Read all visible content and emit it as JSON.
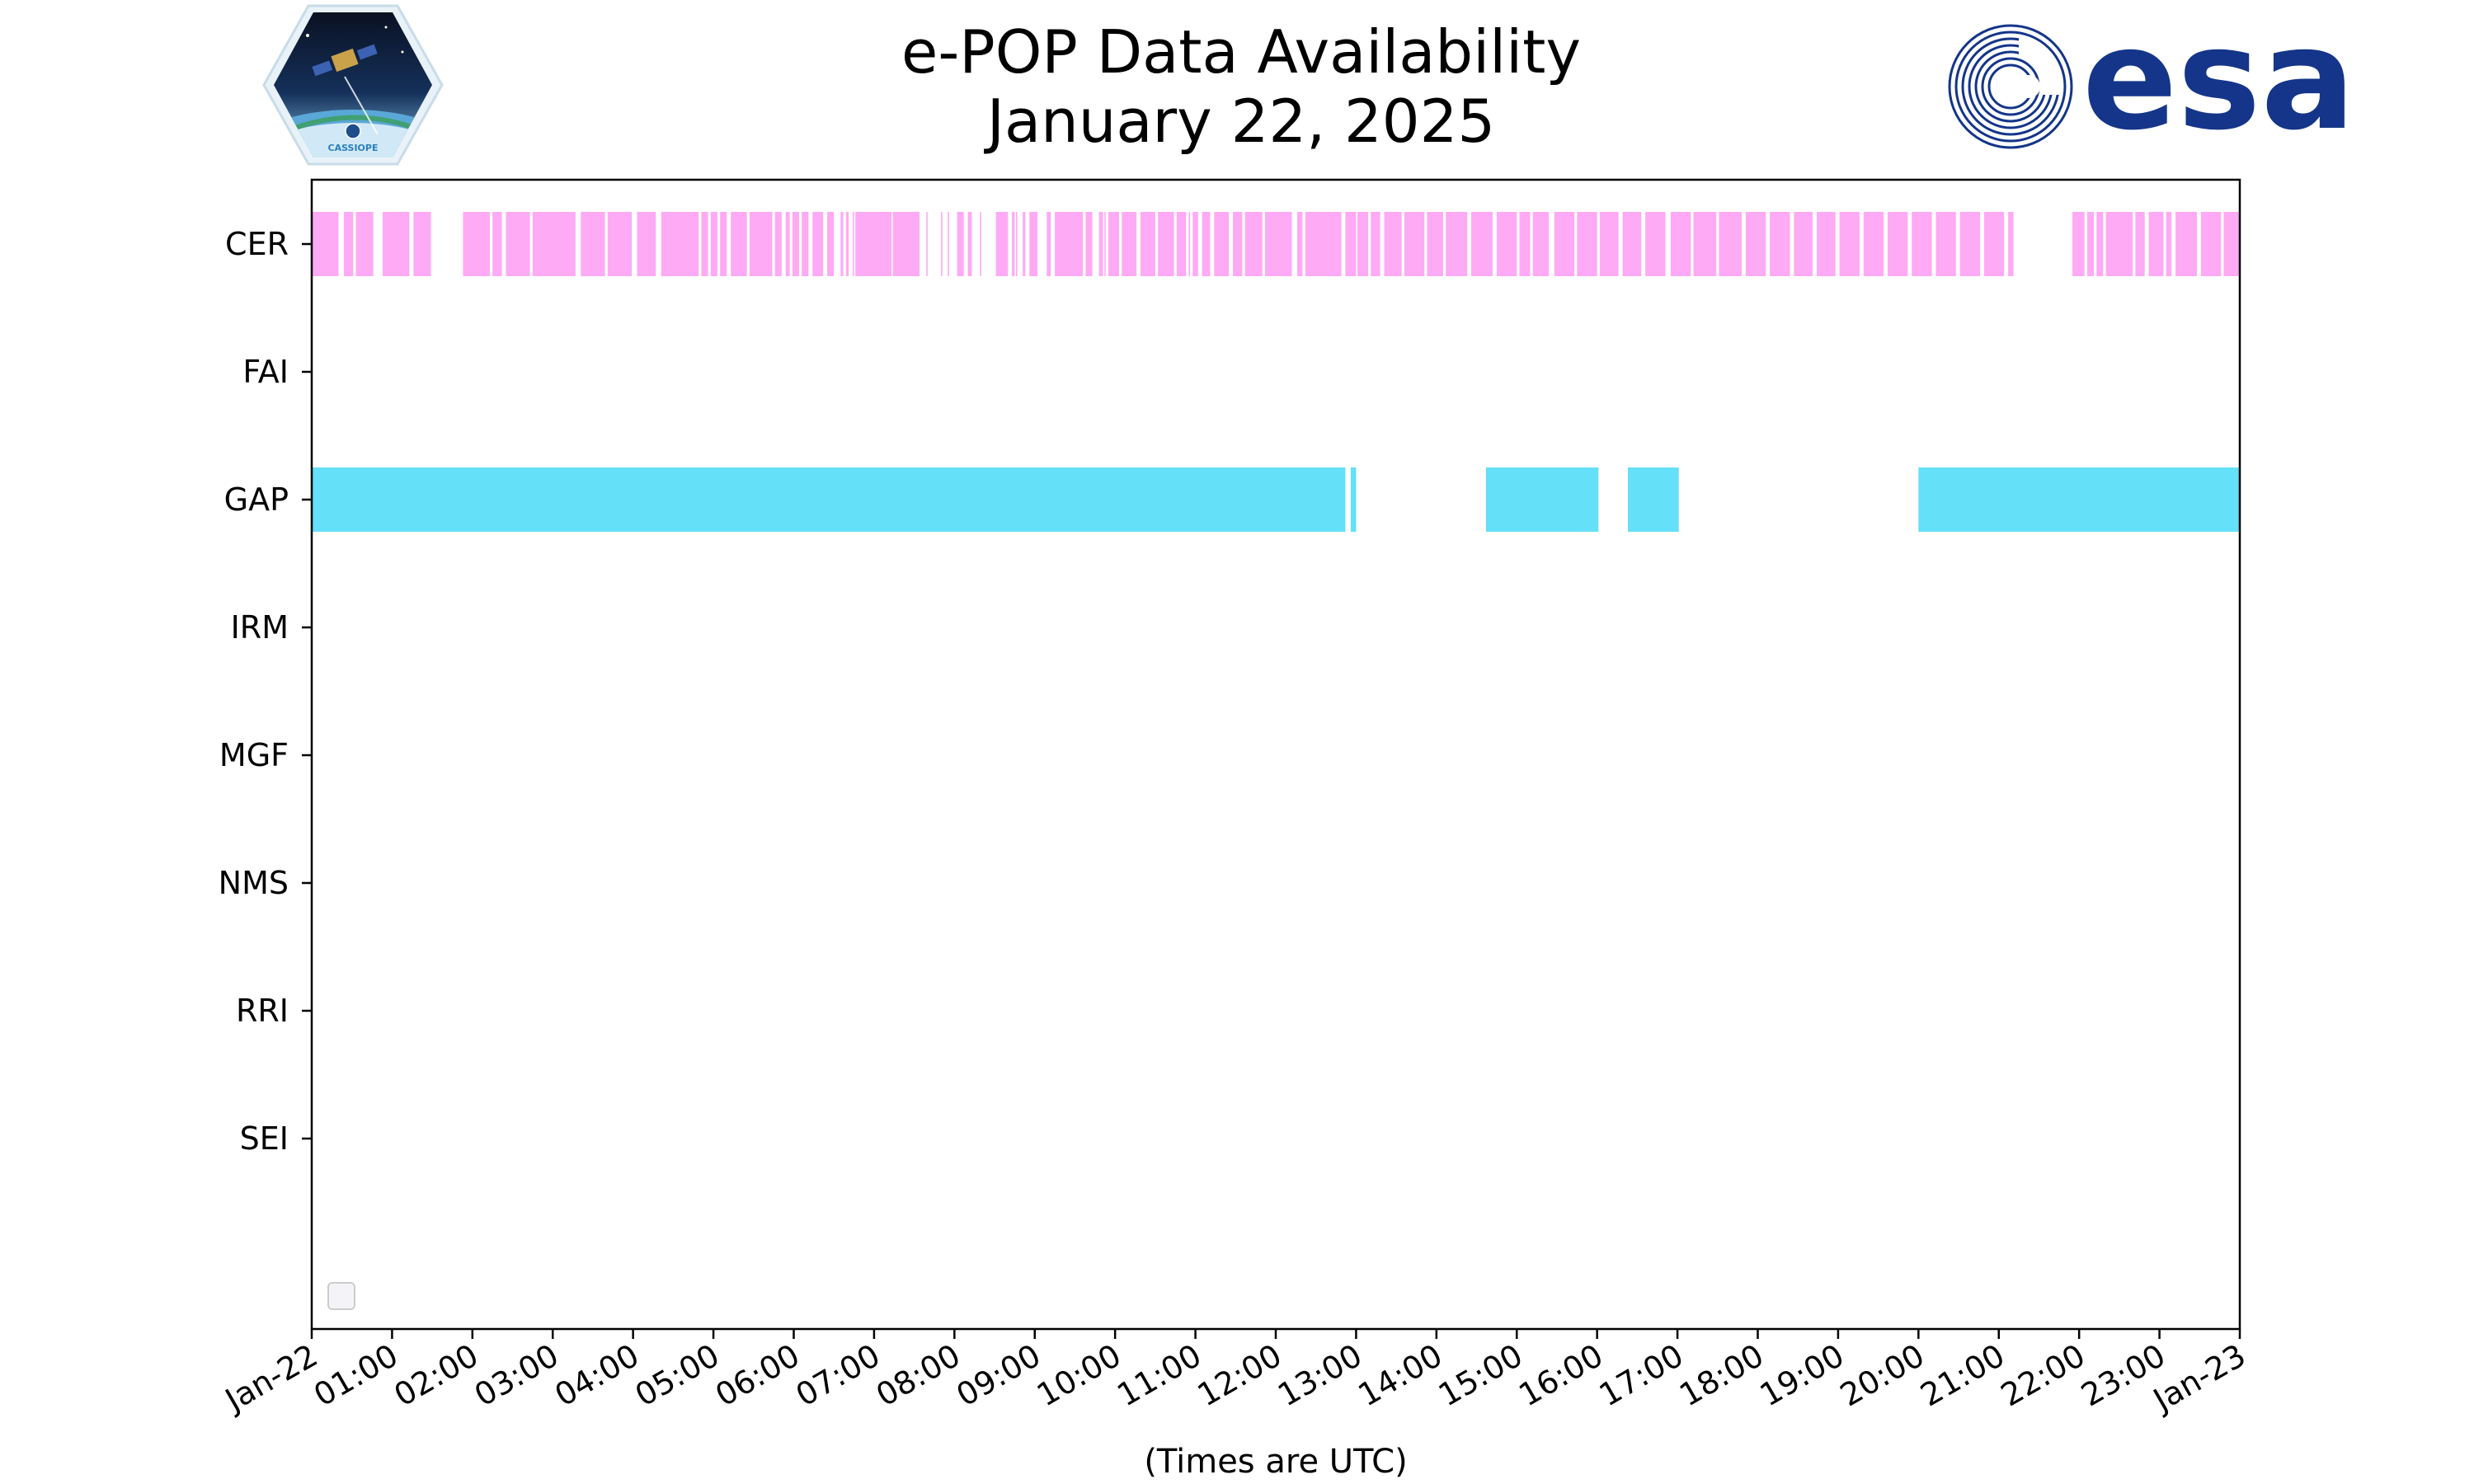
{
  "chart_data": {
    "type": "timeline",
    "title": "e-POP Data Availability",
    "subtitle": "January 22, 2025",
    "xlabel": "(Times are UTC)",
    "xlim": [
      "2025-01-22 00:00",
      "2025-01-23 00:00"
    ],
    "x_tick_labels": [
      "Jan-22",
      "01:00",
      "02:00",
      "03:00",
      "04:00",
      "05:00",
      "06:00",
      "07:00",
      "08:00",
      "09:00",
      "10:00",
      "11:00",
      "12:00",
      "13:00",
      "14:00",
      "15:00",
      "16:00",
      "17:00",
      "18:00",
      "19:00",
      "20:00",
      "21:00",
      "22:00",
      "23:00",
      "Jan-23"
    ],
    "categories": [
      "CER",
      "FAI",
      "GAP",
      "IRM",
      "MGF",
      "NMS",
      "RRI",
      "SEI"
    ],
    "series": [
      {
        "category": "CER",
        "color": "#ffaaf5",
        "intervals": [
          [
            "00:00",
            "00:20"
          ],
          [
            "00:24",
            "00:31"
          ],
          [
            "00:33",
            "00:46"
          ],
          [
            "00:53",
            "01:13"
          ],
          [
            "01:16",
            "01:29"
          ],
          [
            "01:53",
            "02:13"
          ],
          [
            "02:15",
            "02:22"
          ],
          [
            "02:25",
            "02:43"
          ],
          [
            "02:45",
            "03:17"
          ],
          [
            "03:21",
            "03:39"
          ],
          [
            "03:41",
            "03:59"
          ],
          [
            "04:03",
            "04:17"
          ],
          [
            "04:21",
            "04:49"
          ],
          [
            "04:51",
            "04:56"
          ],
          [
            "04:58",
            "05:03"
          ],
          [
            "05:05",
            "05:10"
          ],
          [
            "05:13",
            "05:25"
          ],
          [
            "05:27",
            "05:44"
          ],
          [
            "05:46",
            "05:51"
          ],
          [
            "05:54",
            "05:57"
          ],
          [
            "05:59",
            "06:04"
          ],
          [
            "06:06",
            "06:11"
          ],
          [
            "06:14",
            "06:22"
          ],
          [
            "06:25",
            "06:30"
          ],
          [
            "06:35",
            "06:37"
          ],
          [
            "06:39",
            "06:41"
          ],
          [
            "06:44",
            "06:45"
          ],
          [
            "06:46",
            "07:13"
          ],
          [
            "07:14",
            "07:34"
          ],
          [
            "07:39",
            "07:40"
          ],
          [
            "07:50",
            "07:51"
          ],
          [
            "07:55",
            "07:56"
          ],
          [
            "08:02",
            "08:07"
          ],
          [
            "08:10",
            "08:13"
          ],
          [
            "08:19",
            "08:20"
          ],
          [
            "08:31",
            "08:40"
          ],
          [
            "08:43",
            "08:45"
          ],
          [
            "08:46",
            "08:47"
          ],
          [
            "08:51",
            "08:53"
          ],
          [
            "08:56",
            "09:02"
          ],
          [
            "09:09",
            "09:12"
          ],
          [
            "09:15",
            "09:36"
          ],
          [
            "09:38",
            "09:43"
          ],
          [
            "09:48",
            "09:51"
          ],
          [
            "09:52",
            "09:53"
          ],
          [
            "09:55",
            "10:03"
          ],
          [
            "10:05",
            "10:16"
          ],
          [
            "10:19",
            "10:30"
          ],
          [
            "10:32",
            "10:44"
          ],
          [
            "10:46",
            "10:53"
          ],
          [
            "10:55",
            "10:56"
          ],
          [
            "10:58",
            "11:02"
          ],
          [
            "11:05",
            "11:11"
          ],
          [
            "11:14",
            "11:25"
          ],
          [
            "11:28",
            "11:35"
          ],
          [
            "11:37",
            "11:50"
          ],
          [
            "11:52",
            "12:12"
          ],
          [
            "12:16",
            "12:20"
          ],
          [
            "12:22",
            "12:49"
          ],
          [
            "12:52",
            "13:00"
          ],
          [
            "13:01",
            "13:09"
          ],
          [
            "13:11",
            "13:18"
          ],
          [
            "13:21",
            "13:34"
          ],
          [
            "13:36",
            "13:51"
          ],
          [
            "13:53",
            "14:05"
          ],
          [
            "14:07",
            "14:23"
          ],
          [
            "14:26",
            "14:42"
          ],
          [
            "14:45",
            "15:00"
          ],
          [
            "15:02",
            "15:10"
          ],
          [
            "15:12",
            "15:24"
          ],
          [
            "15:28",
            "15:43"
          ],
          [
            "15:45",
            "16:00"
          ],
          [
            "16:02",
            "16:16"
          ],
          [
            "16:19",
            "16:33"
          ],
          [
            "16:36",
            "16:51"
          ],
          [
            "16:55",
            "17:10"
          ],
          [
            "17:12",
            "17:29"
          ],
          [
            "17:31",
            "17:48"
          ],
          [
            "17:51",
            "18:06"
          ],
          [
            "18:09",
            "18:24"
          ],
          [
            "18:27",
            "18:41"
          ],
          [
            "18:44",
            "18:58"
          ],
          [
            "19:01",
            "19:16"
          ],
          [
            "19:19",
            "19:34"
          ],
          [
            "19:37",
            "19:52"
          ],
          [
            "19:55",
            "20:10"
          ],
          [
            "20:13",
            "20:28"
          ],
          [
            "20:31",
            "20:46"
          ],
          [
            "20:49",
            "21:04"
          ],
          [
            "21:07",
            "21:11"
          ],
          [
            "21:55",
            "22:04"
          ],
          [
            "22:06",
            "22:11"
          ],
          [
            "22:13",
            "22:18"
          ],
          [
            "22:20",
            "22:40"
          ],
          [
            "22:42",
            "22:49"
          ],
          [
            "22:52",
            "23:03"
          ],
          [
            "23:05",
            "23:09"
          ],
          [
            "23:12",
            "23:28"
          ],
          [
            "23:31",
            "23:46"
          ],
          [
            "23:48",
            "24:00"
          ]
        ]
      },
      {
        "category": "GAP",
        "color": "#64e0f8",
        "intervals": [
          [
            "00:00",
            "12:52"
          ],
          [
            "12:56",
            "13:00"
          ],
          [
            "14:37",
            "16:01"
          ],
          [
            "16:23",
            "17:01"
          ],
          [
            "20:00",
            "24:00"
          ]
        ]
      }
    ],
    "grid": false,
    "legend": "bottom-left"
  },
  "logos": {
    "left": {
      "name": "cassiope-logo",
      "text": "CASSIOPE"
    },
    "right": {
      "name": "esa-logo",
      "text": "esa"
    }
  },
  "colors": {
    "cer": "#ffaaf5",
    "gap": "#64e0f8",
    "esa_blue": "#143589",
    "axis": "#000000"
  }
}
